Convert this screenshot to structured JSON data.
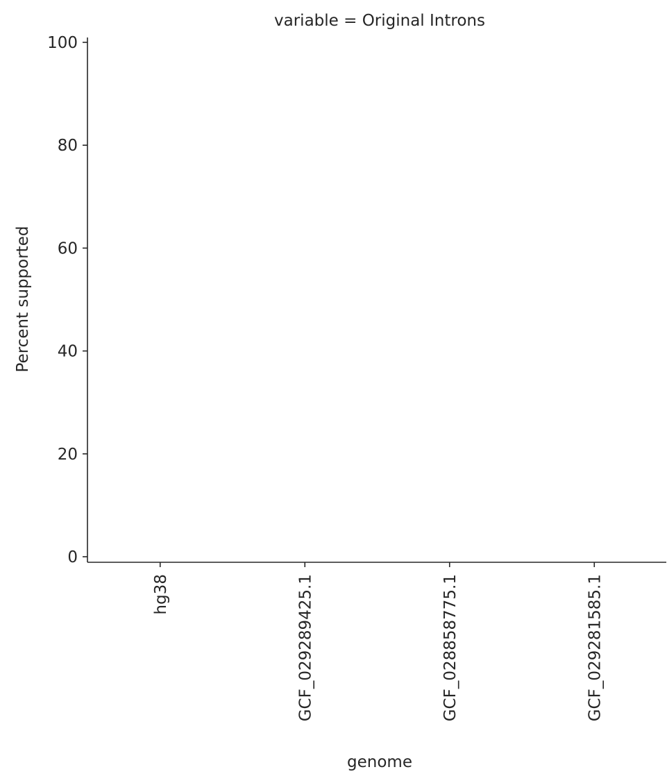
{
  "chart_data": {
    "type": "bar",
    "title": "variable = Original Introns",
    "xlabel": "genome",
    "ylabel": "Percent supported",
    "categories": [
      "hg38",
      "GCF_029289425.1",
      "GCF_028858775.1",
      "GCF_029281585.1"
    ],
    "values": [
      0,
      0,
      0,
      0
    ],
    "ylim": [
      0,
      100
    ],
    "yticks": [
      "0",
      "20",
      "40",
      "60",
      "80",
      "100"
    ],
    "grid": false,
    "legend": "none"
  }
}
